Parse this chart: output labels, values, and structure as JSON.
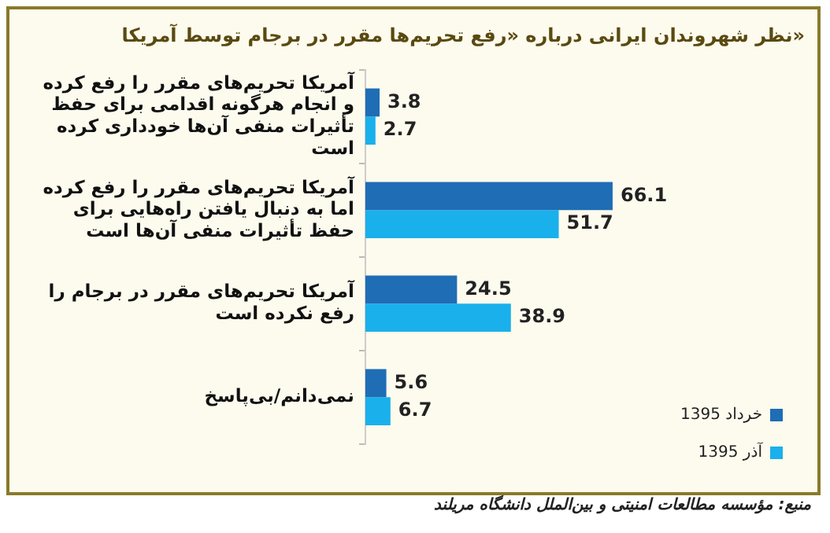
{
  "chart_data": {
    "type": "bar",
    "orientation": "horizontal",
    "title": "نظر شهروندان ایرانی درباره «رفع تحریم‌ها مقرر در برجام توسط آمریکا»",
    "categories": [
      "آمریکا تحریم‌های مقرر را رفع کرده و انجام هرگونه اقدامی برای حفظ تأثیرات منفی آن‌ها خودداری کرده است",
      "آمریکا تحریم‌های مقرر را رفع کرده اما به دنبال یافتن راه‌هایی برای حفظ تأثیرات منفی آن‌ها است",
      "آمریکا تحریم‌های مقرر در برجام را رفع نکرده است",
      "نمی‌دانم/بی‌پاسخ"
    ],
    "series": [
      {
        "name": "خرداد 1395",
        "color": "#1f6db5",
        "values": [
          3.8,
          66.1,
          24.5,
          5.6
        ]
      },
      {
        "name": "آذر 1395",
        "color": "#1ab0ec",
        "values": [
          2.7,
          51.7,
          38.9,
          6.7
        ]
      }
    ],
    "tick_labels": "y",
    "data_labels": true,
    "legend": "right",
    "annotations": [
      "منبع: مؤسسه مطالعات امنیتی و بین‌الملل دانشگاه مریلند"
    ]
  }
}
